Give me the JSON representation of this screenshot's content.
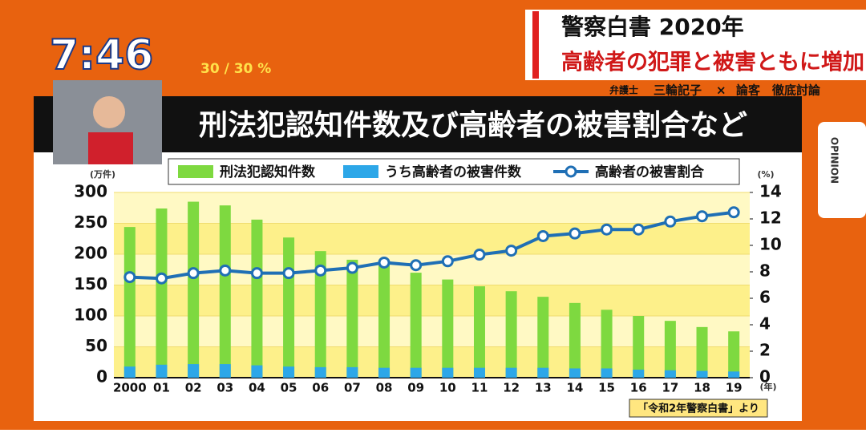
{
  "chart_data": {
    "type": "bar",
    "title": "刑法犯認知件数及び高齢者の被害割合など",
    "y_unit": "(万件)",
    "y2_unit": "(%)",
    "x_unit": "(年)",
    "categories": [
      "2000",
      "01",
      "02",
      "03",
      "04",
      "05",
      "06",
      "07",
      "08",
      "09",
      "10",
      "11",
      "12",
      "13",
      "14",
      "15",
      "16",
      "17",
      "18",
      "19"
    ],
    "series": [
      {
        "name": "刑法犯認知件数",
        "color": "#7ed940",
        "values": [
          244,
          274,
          285,
          279,
          256,
          227,
          205,
          191,
          182,
          170,
          159,
          148,
          140,
          131,
          121,
          110,
          100,
          92,
          82,
          75
        ]
      },
      {
        "name": "うち高齢者の被害件数",
        "color": "#2da7e8",
        "values": [
          18,
          21,
          22,
          22,
          20,
          18,
          17,
          17,
          16,
          16,
          16,
          16,
          16,
          16,
          15,
          15,
          13,
          12,
          11,
          10
        ]
      },
      {
        "name": "高齢者の被害割合",
        "color": "#1f6fb5",
        "type": "line",
        "axis": "y2",
        "values": [
          7.6,
          7.5,
          7.9,
          8.1,
          7.9,
          7.9,
          8.1,
          8.3,
          8.7,
          8.5,
          8.8,
          9.3,
          9.6,
          10.7,
          10.9,
          11.2,
          11.2,
          11.8,
          12.2,
          12.5
        ]
      }
    ],
    "ylim": [
      0,
      300
    ],
    "yticks": [
      0,
      50,
      100,
      150,
      200,
      250,
      300
    ],
    "y2lim": [
      0,
      14
    ],
    "y2ticks": [
      0,
      2,
      4,
      6,
      8,
      10,
      12,
      14
    ],
    "source": "「令和2年警察白書」より"
  },
  "overlay": {
    "clock": "7:46",
    "weather": "30 / 30 %",
    "headline_1": "警察白書 2020年",
    "headline_2": "高齢者の犯罪と被害ともに増加",
    "caption_role": "弁護士",
    "caption_name": "三輪記子",
    "caption_sep": "×",
    "caption_rest": "論客　徹底討論",
    "side_tab": "OPINION"
  }
}
